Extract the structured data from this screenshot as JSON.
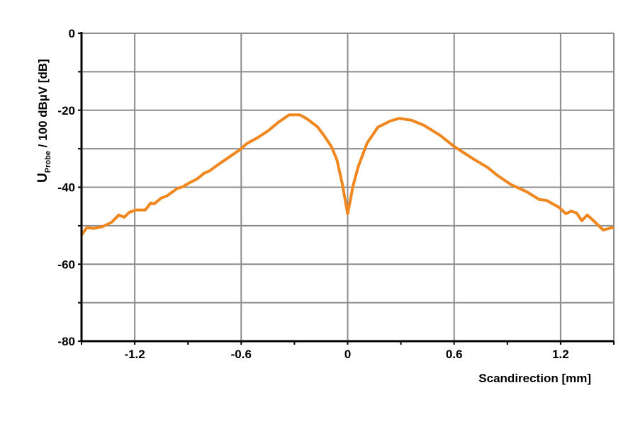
{
  "chart_data": {
    "type": "line",
    "title": "",
    "xlabel": "Scandirection [mm]",
    "ylabel": {
      "main": "U",
      "subscript": "Probe",
      "rest": " / 100 dBµV [dB]"
    },
    "xlim": [
      -1.5,
      1.5
    ],
    "ylim": [
      -80,
      0
    ],
    "x_ticks": [
      -1.2,
      -0.6,
      0,
      0.6,
      1.2
    ],
    "x_tick_labels": [
      "-1.2",
      "-0.6",
      "0",
      "0.6",
      "1.2"
    ],
    "x_minor_ticks": [
      -1.5,
      -0.9,
      -0.3,
      0.3,
      0.9,
      1.5
    ],
    "y_ticks": [
      0,
      -20,
      -40,
      -60,
      -80
    ],
    "y_tick_labels": [
      "0",
      "-20",
      "-40",
      "-60",
      "-80"
    ],
    "y_minor_ticks": [
      -10,
      -30,
      -50,
      -70
    ],
    "grid": {
      "x_every": 0.6,
      "y_every": 10,
      "color": "#8c8c8c"
    },
    "series": [
      {
        "color": "#f0861e",
        "x": [
          -1.5,
          -1.47,
          -1.43,
          -1.38,
          -1.33,
          -1.29,
          -1.26,
          -1.23,
          -1.19,
          -1.14,
          -1.11,
          -1.09,
          -1.05,
          -1.02,
          -0.96,
          -0.93,
          -0.89,
          -0.85,
          -0.81,
          -0.78,
          -0.72,
          -0.65,
          -0.6,
          -0.57,
          -0.51,
          -0.45,
          -0.39,
          -0.33,
          -0.27,
          -0.23,
          -0.17,
          -0.13,
          -0.09,
          -0.06,
          -0.03,
          0,
          0.03,
          0.06,
          0.11,
          0.17,
          0.24,
          0.29,
          0.36,
          0.43,
          0.52,
          0.6,
          0.71,
          0.79,
          0.84,
          0.92,
          1.01,
          1.08,
          1.12,
          1.19,
          1.23,
          1.26,
          1.29,
          1.32,
          1.35,
          1.39,
          1.44,
          1.49,
          1.5
        ],
        "y": [
          -52.4,
          -50.5,
          -50.7,
          -50.2,
          -49.1,
          -47.2,
          -47.8,
          -46.5,
          -45.9,
          -45.9,
          -44.1,
          -44.3,
          -42.8,
          -42.3,
          -40.3,
          -39.9,
          -38.8,
          -37.9,
          -36.4,
          -35.8,
          -33.8,
          -31.6,
          -30,
          -28.7,
          -27.2,
          -25.4,
          -23.1,
          -21.2,
          -21.2,
          -22.2,
          -24.3,
          -26.8,
          -29.6,
          -33,
          -39.2,
          -46.9,
          -39.7,
          -34.6,
          -28.5,
          -24.4,
          -22.8,
          -22.1,
          -22.6,
          -23.9,
          -26.5,
          -29.4,
          -32.7,
          -34.9,
          -36.8,
          -39.3,
          -41.2,
          -43.2,
          -43.4,
          -45.2,
          -46.9,
          -46.2,
          -46.7,
          -48.7,
          -47.2,
          -48.9,
          -51.1,
          -50.5,
          -50.5
        ]
      }
    ]
  }
}
